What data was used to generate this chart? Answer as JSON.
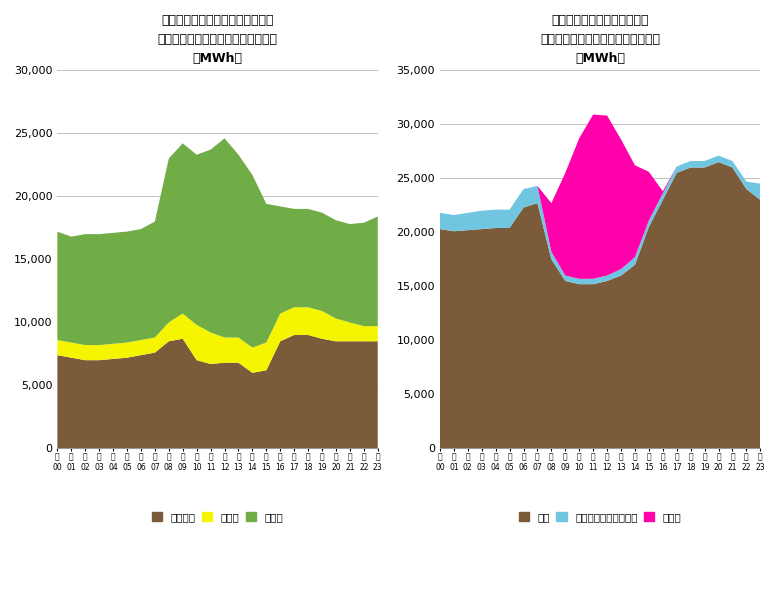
{
  "left_title_line1": "カリフォルニア州電源種別発電量",
  "left_title_line2": "系統連系・ストレージは考慮しない",
  "left_title_line3": "（MWh）",
  "right_title_line1": "東京電力管内電源種別発電量",
  "right_title_line2": "系統連携・揚水発電分は考慮しない",
  "right_title_line3": "（MWh）",
  "hours": [
    0,
    1,
    2,
    3,
    4,
    5,
    6,
    7,
    8,
    9,
    10,
    11,
    12,
    13,
    14,
    15,
    16,
    17,
    18,
    19,
    20,
    21,
    22,
    23
  ],
  "left_thermal": [
    7400,
    7200,
    7000,
    7000,
    7100,
    7200,
    7400,
    7600,
    8500,
    8700,
    7000,
    6700,
    6800,
    6800,
    6000,
    6200,
    8500,
    9000,
    9000,
    8700,
    8500,
    8500,
    8500,
    8500
  ],
  "left_nuclear": [
    1200,
    1200,
    1200,
    1200,
    1200,
    1200,
    1200,
    1200,
    1500,
    2000,
    2800,
    2500,
    2000,
    2000,
    2000,
    2200,
    2200,
    2200,
    2200,
    2200,
    1800,
    1500,
    1200,
    1200
  ],
  "left_renew": [
    8600,
    8400,
    8800,
    8800,
    8800,
    8800,
    8800,
    9200,
    13000,
    13500,
    13500,
    14500,
    15800,
    14500,
    13700,
    11000,
    8500,
    7800,
    7800,
    7800,
    7800,
    7800,
    8200,
    8700
  ],
  "right_thermal": [
    20300,
    20100,
    20200,
    20300,
    20400,
    20400,
    22300,
    22700,
    17500,
    15500,
    15200,
    15200,
    15500,
    16000,
    17000,
    20500,
    23000,
    25500,
    26000,
    26000,
    26500,
    26000,
    24000,
    23000
  ],
  "right_renew_ex_solar": [
    1500,
    1500,
    1600,
    1700,
    1700,
    1700,
    1700,
    1600,
    700,
    500,
    500,
    500,
    500,
    600,
    700,
    600,
    600,
    600,
    600,
    600,
    600,
    600,
    700,
    1500
  ],
  "right_solar": [
    0,
    0,
    0,
    0,
    0,
    0,
    0,
    0,
    4500,
    9500,
    13000,
    15200,
    14800,
    12000,
    8500,
    4500,
    200,
    0,
    0,
    0,
    0,
    0,
    0,
    0
  ],
  "left_thermal_color": "#7B5B3A",
  "left_nuclear_color": "#F5F500",
  "left_renew_color": "#70AD47",
  "right_thermal_color": "#7B5B3A",
  "right_renew_ex_solar_color": "#70C6E0",
  "right_solar_color": "#FF00AA",
  "left_ylim": [
    0,
    30000
  ],
  "right_ylim": [
    0,
    35000
  ],
  "left_yticks": [
    0,
    5000,
    10000,
    15000,
    20000,
    25000,
    30000
  ],
  "right_yticks": [
    0,
    5000,
    10000,
    15000,
    20000,
    25000,
    30000,
    35000
  ],
  "left_legend": [
    "火力発電",
    "原子力",
    "再エネ"
  ],
  "right_legend": [
    "火力",
    "再エネ（太陽光以外）",
    "太陽光"
  ],
  "bg_color": "#FFFFFF",
  "grid_color": "#C0C0C0",
  "hour_label": "時"
}
